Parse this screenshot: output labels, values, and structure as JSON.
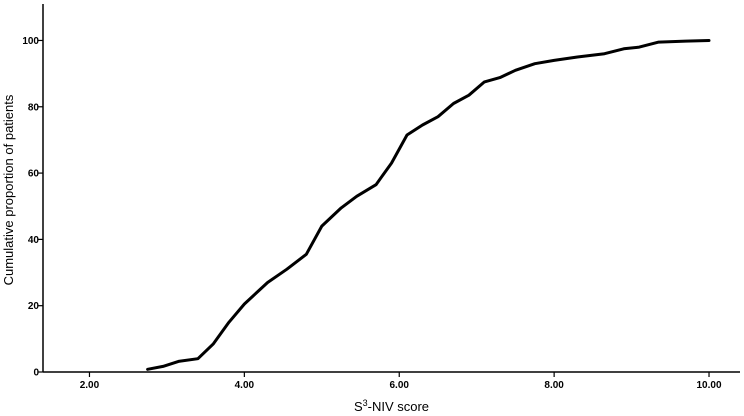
{
  "chart_data": {
    "type": "line",
    "title": "",
    "xlabel": {
      "main": "S",
      "sup": "3",
      "rest": "-NIV score"
    },
    "ylabel": "Cumulative proportion of patients",
    "xlim": [
      1.4,
      10.4
    ],
    "ylim": [
      0,
      111
    ],
    "x_ticks": [
      2,
      4,
      6,
      8,
      10
    ],
    "x_tick_labels": [
      "2.00",
      "4.00",
      "6.00",
      "8.00",
      "10.00"
    ],
    "y_ticks": [
      0,
      20,
      40,
      60,
      80,
      100
    ],
    "y_tick_labels": [
      "0",
      "20",
      "40",
      "60",
      "80",
      "100"
    ],
    "grid": false,
    "series": [
      {
        "color": "#000000",
        "x": [
          2.75,
          2.95,
          3.15,
          3.4,
          3.6,
          3.8,
          4.0,
          4.3,
          4.55,
          4.8,
          5.0,
          5.25,
          5.45,
          5.7,
          5.9,
          6.1,
          6.3,
          6.5,
          6.7,
          6.9,
          7.1,
          7.3,
          7.5,
          7.75,
          8.0,
          8.3,
          8.65,
          8.9,
          9.1,
          9.35,
          9.7,
          10.0
        ],
        "y": [
          0.8,
          1.7,
          3.2,
          4.0,
          8.5,
          15.0,
          20.5,
          27.0,
          31.0,
          35.5,
          44.0,
          49.5,
          53.0,
          56.5,
          63.0,
          71.5,
          74.5,
          77.0,
          81.0,
          83.5,
          87.5,
          88.8,
          91.0,
          93.0,
          94.0,
          95.0,
          96.0,
          97.5,
          98.0,
          99.5,
          99.8,
          100.0
        ]
      }
    ]
  }
}
